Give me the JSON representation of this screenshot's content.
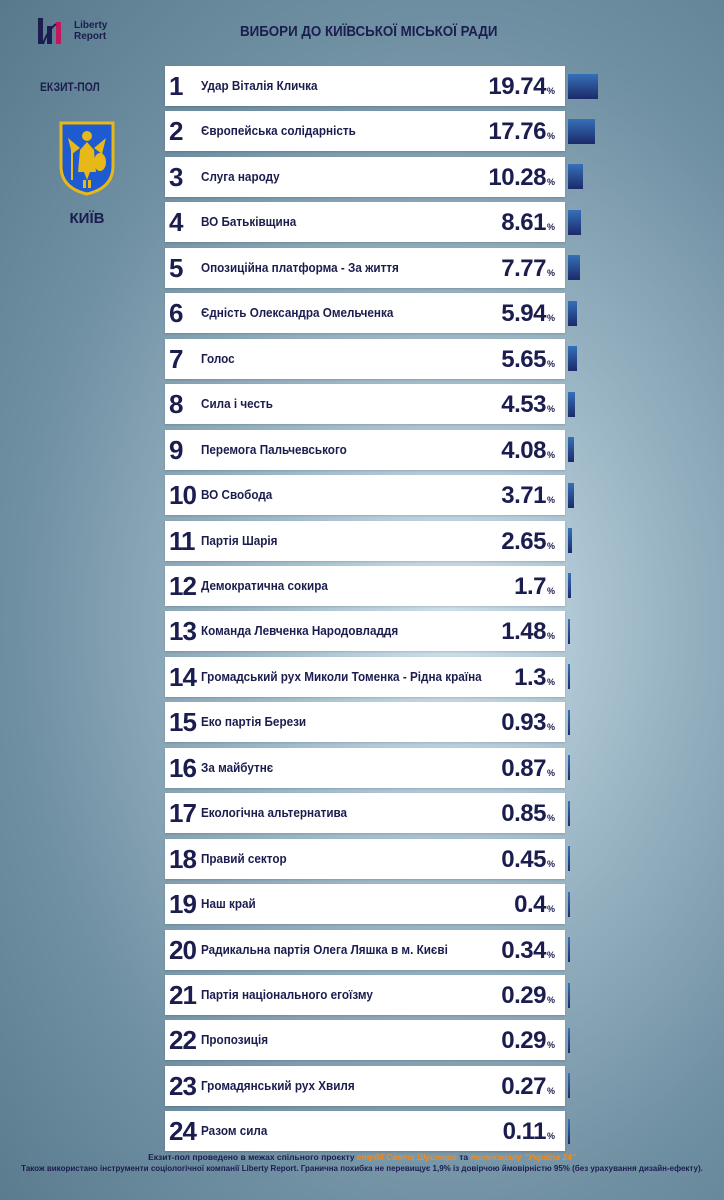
{
  "header": {
    "logo_text_1": "Liberty",
    "logo_text_2": "Report",
    "title": "ВИБОРИ ДО КИЇВСЬКОЇ МІСЬКОЇ РАДИ",
    "exit_poll": "ЕКЗИТ-ПОЛ",
    "city": "КИЇВ"
  },
  "colors": {
    "text": "#1b1d4f",
    "bar_top": "#3670b8",
    "bar_bottom": "#1c2a6a",
    "highlight": "#f28a1f"
  },
  "percent_sign": "%",
  "chart_data": {
    "type": "bar",
    "title": "ВИБОРИ ДО КИЇВСЬКОЇ МІСЬКОЇ РАДИ",
    "xlabel": "",
    "ylabel": "",
    "unit": "%",
    "orientation": "horizontal",
    "ranks": [
      1,
      2,
      3,
      4,
      5,
      6,
      7,
      8,
      9,
      10,
      11,
      12,
      13,
      14,
      15,
      16,
      17,
      18,
      19,
      20,
      21,
      22,
      23,
      24
    ],
    "categories": [
      "Удар Віталія Кличка",
      "Європейська солідарність",
      "Слуга народу",
      "ВО Батьківщина",
      "Опозиційна платформа - За життя",
      "Єдність Олександра Омельченка",
      "Голос",
      "Сила і честь",
      "Перемога Пальчевського",
      "ВО Свобода",
      "Партія Шарія",
      "Демократична сокира",
      "Команда Левченка Народовладдя",
      "Громадський рух Миколи Томенка - Рідна країна",
      "Еко партія Берези",
      "За майбутнє",
      "Екологічна альтернатива",
      "Правий сектор",
      "Наш край",
      "Радикальна партія Олега Ляшка в м. Києві",
      "Партія національного егоїзму",
      "Пропозиція",
      "Громадянський рух Хвиля",
      "Разом сила"
    ],
    "labels": [
      "19.74",
      "17.76",
      "10.28",
      "8.61",
      "7.77",
      "5.94",
      "5.65",
      "4.53",
      "4.08",
      "3.71",
      "2.65",
      "1.7",
      "1.48",
      "1.3",
      "0.93",
      "0.87",
      "0.85",
      "0.45",
      "0.4",
      "0.34",
      "0.29",
      "0.29",
      "0.27",
      "0.11"
    ],
    "values": [
      19.74,
      17.76,
      10.28,
      8.61,
      7.77,
      5.94,
      5.65,
      4.53,
      4.08,
      3.71,
      2.65,
      1.7,
      1.48,
      1.3,
      0.93,
      0.87,
      0.85,
      0.45,
      0.4,
      0.34,
      0.29,
      0.29,
      0.27,
      0.11
    ],
    "xlim": [
      0,
      20
    ]
  },
  "footer": {
    "line1_a": "Екзит-пол проведено в межах спільного проєкту",
    "line1_b": "студії Свята Шустера",
    "line1_c": "та",
    "line1_d": "телеканалу \"Україна 24\"",
    "line2": "Також використано інструменти соціологічної компанії Liberty Report. Гранична похибка не перевищує 1,9% із довірчою ймовірністю 95% (без урахування дизайн-ефекту)."
  }
}
